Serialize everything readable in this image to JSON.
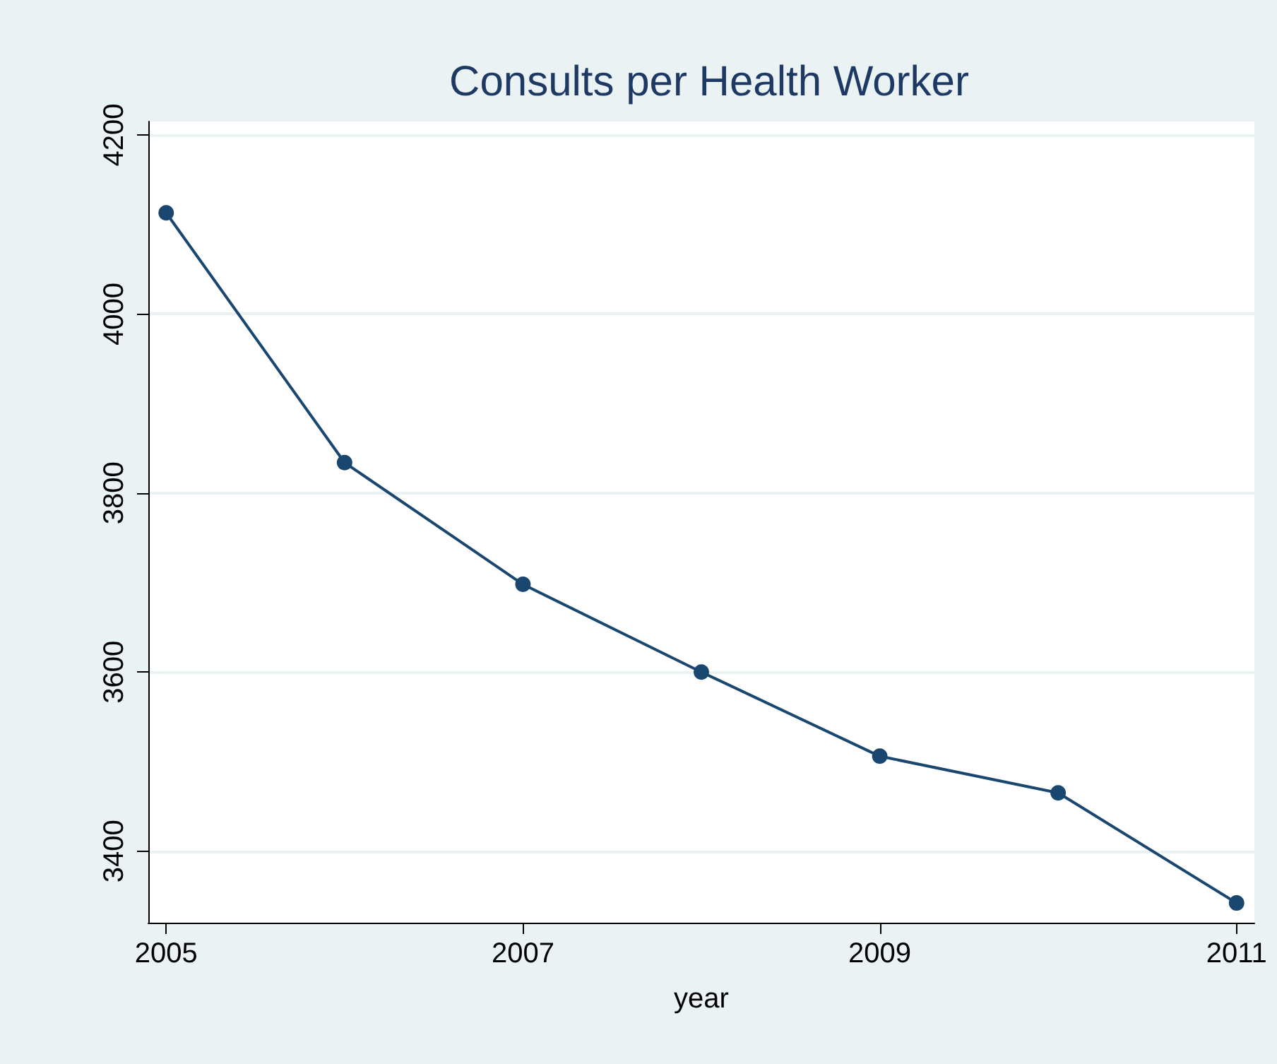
{
  "chart_data": {
    "type": "line",
    "title": "Consults per Health Worker",
    "xlabel": "year",
    "x": [
      2005,
      2006,
      2007,
      2008,
      2009,
      2010,
      2011
    ],
    "series": [
      {
        "color": "#1a476f",
        "values": [
          4113,
          3834,
          3698,
          3600,
          3506,
          3465,
          3342
        ]
      }
    ],
    "xlim": [
      2004.9,
      2011.1
    ],
    "xticks": [
      2005,
      2007,
      2009,
      2011
    ],
    "ylim": [
      3320,
      4215
    ],
    "yticks": [
      3400,
      3600,
      3800,
      4000,
      4200
    ],
    "grid": "y",
    "marker": "circle",
    "line_style": "solid"
  }
}
